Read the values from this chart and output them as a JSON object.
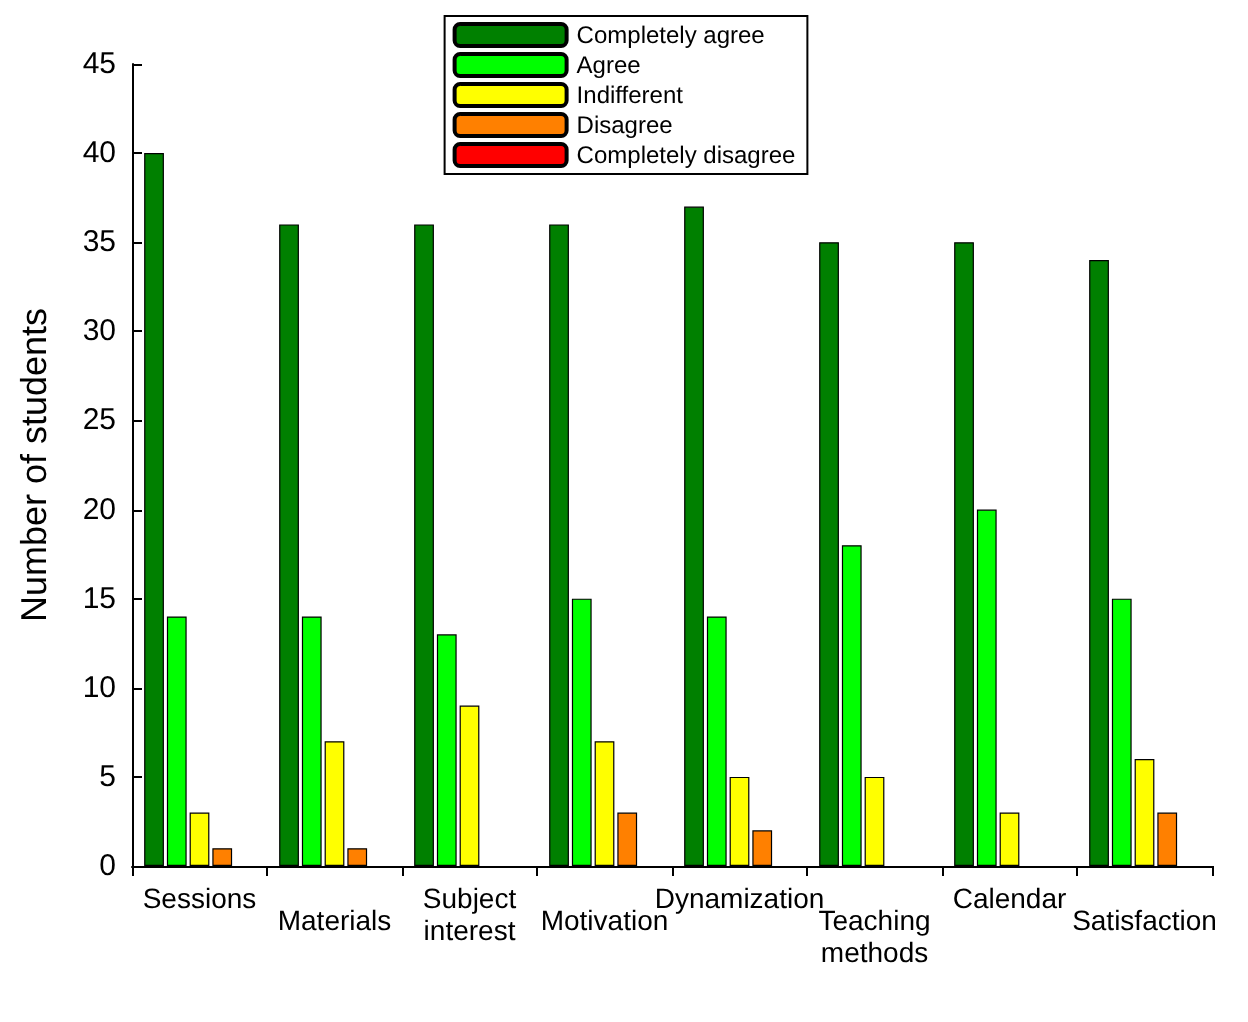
{
  "chart_data": {
    "type": "bar",
    "ylabel": "Number of students",
    "categories": [
      "Sessions",
      "Materials",
      "Subject\ninterest",
      "Motivation",
      "Dynamization",
      "Teaching\nmethods",
      "Calendar",
      "Satisfaction"
    ],
    "series": [
      {
        "name": "Completely agree",
        "color": "#008000",
        "values": [
          40,
          36,
          36,
          36,
          37,
          35,
          35,
          34
        ]
      },
      {
        "name": "Agree",
        "color": "#00ff00",
        "values": [
          14,
          14,
          13,
          15,
          14,
          18,
          20,
          15
        ]
      },
      {
        "name": "Indifferent",
        "color": "#ffff00",
        "values": [
          3,
          7,
          9,
          7,
          5,
          5,
          3,
          6
        ]
      },
      {
        "name": "Disagree",
        "color": "#ff8000",
        "values": [
          1,
          1,
          0,
          3,
          2,
          0,
          0,
          3
        ]
      },
      {
        "name": "Completely disagree",
        "color": "#ff0000",
        "values": [
          0,
          0,
          0,
          0,
          0,
          0,
          0,
          0
        ]
      }
    ],
    "ylim": [
      0,
      45
    ],
    "yticks": [
      0,
      5,
      10,
      15,
      20,
      25,
      30,
      35,
      40,
      45
    ],
    "grid": false,
    "legend": "top"
  }
}
